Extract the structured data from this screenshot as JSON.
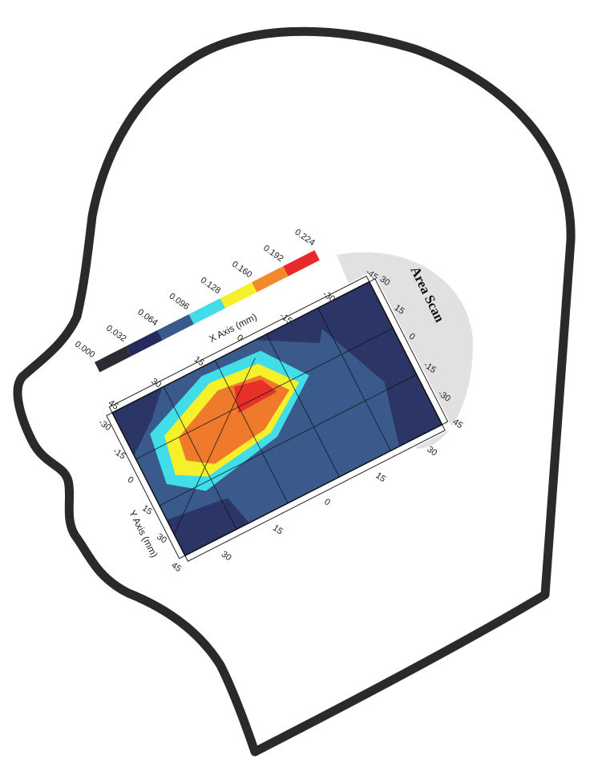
{
  "labels": {
    "area_scan": "Area Scan",
    "x_axis": "X Axis (mm)",
    "y_axis": "Y Axis (mm)"
  },
  "colorbar": [
    {
      "label": "0.000",
      "color": "#2b2b36"
    },
    {
      "label": "0.032",
      "color": "#252a5c"
    },
    {
      "label": "0.064",
      "color": "#3a5a8c"
    },
    {
      "label": "0.096",
      "color": "#41dde8"
    },
    {
      "label": "0.128",
      "color": "#f5f02a"
    },
    {
      "label": "0.160",
      "color": "#f08a2c"
    },
    {
      "label": "0.192",
      "color": "#ea2a2a"
    },
    {
      "label": "0.224",
      "color": ""
    }
  ],
  "axes": {
    "x_ticks": [
      "45",
      "30",
      "15",
      "0",
      "-15",
      "-30",
      "-45"
    ],
    "y_ticks_left": [
      "-30",
      "-15",
      "0",
      "15",
      "30",
      "45"
    ],
    "y_ticks_right": [
      "30",
      "15",
      "0",
      "-15",
      "-30",
      "45"
    ],
    "x_bottom": [
      "30",
      "15",
      "0",
      "15",
      "30"
    ],
    "y_far": [
      "-15",
      "0",
      "15",
      "30"
    ]
  },
  "colors": {
    "head_outline": "#2a2a2a",
    "shadow": "#cfcfcf",
    "map_low": "#2b3566",
    "map_mid": "#3a5a8c",
    "cyan": "#41dde8",
    "yellow": "#f5f02a",
    "orange": "#f07a2c",
    "red": "#e8302a"
  }
}
